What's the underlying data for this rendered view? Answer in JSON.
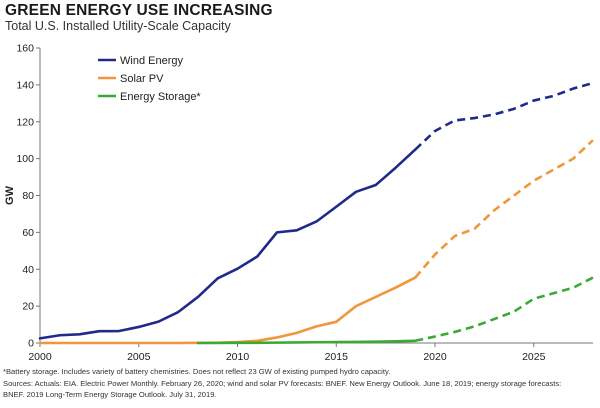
{
  "header": {
    "title": "GREEN ENERGY USE INCREASING",
    "subtitle": "Total U.S. Installed Utility-Scale Capacity"
  },
  "footnotes": {
    "note": "*Battery storage. Includes variety of battery chemistries. Does not reflect 23 GW of existing pumped hydro capacity.",
    "sources_line1": "Sources: Actuals: EIA. Electric Power Monthly. February 26, 2020; wind and solar PV forecasts: BNEF. New Energy Outlook. June 18, 2019; energy storage forecasts:",
    "sources_line2": "BNEF. 2019 Long-Term Energy Storage Outlook. July 31, 2019."
  },
  "chart_data": {
    "type": "line",
    "title": "GREEN ENERGY USE INCREASING",
    "subtitle": "Total U.S. Installed Utility-Scale Capacity",
    "xlabel": "",
    "ylabel": "GW",
    "xlim": [
      2000,
      2028
    ],
    "ylim": [
      0,
      160
    ],
    "xticks": [
      2000,
      2005,
      2010,
      2015,
      2020,
      2025
    ],
    "yticks": [
      0,
      20,
      40,
      60,
      80,
      100,
      120,
      140,
      160
    ],
    "grid": false,
    "legend_position": "top-left",
    "forecast_style": "dashed",
    "series": [
      {
        "name": "Wind Energy",
        "color": "#1f2a8a",
        "actual": {
          "x": [
            2000,
            2001,
            2002,
            2003,
            2004,
            2005,
            2006,
            2007,
            2008,
            2009,
            2010,
            2011,
            2012,
            2013,
            2014,
            2015,
            2016,
            2017,
            2018,
            2019
          ],
          "y": [
            2.5,
            4.2,
            4.7,
            6.4,
            6.5,
            8.7,
            11.6,
            16.8,
            25.0,
            35.1,
            40.3,
            46.9,
            60.0,
            61.1,
            65.9,
            73.9,
            82.0,
            85.7,
            95.0,
            104.9
          ]
        },
        "forecast": {
          "x": [
            2019,
            2020,
            2021,
            2022,
            2023,
            2024,
            2025,
            2026,
            2027,
            2028
          ],
          "y": [
            104.9,
            115.0,
            120.7,
            122.0,
            124.0,
            127.0,
            131.5,
            134.0,
            138.0,
            141.0
          ]
        }
      },
      {
        "name": "Solar PV",
        "color": "#f0963c",
        "actual": {
          "x": [
            2000,
            2001,
            2002,
            2003,
            2004,
            2005,
            2006,
            2007,
            2008,
            2009,
            2010,
            2011,
            2012,
            2013,
            2014,
            2015,
            2016,
            2017,
            2018,
            2019
          ],
          "y": [
            0,
            0,
            0,
            0,
            0,
            0,
            0,
            0,
            0.1,
            0.2,
            0.5,
            1.2,
            3.0,
            5.5,
            9.0,
            11.5,
            20.0,
            25.0,
            30.0,
            35.5
          ]
        },
        "forecast": {
          "x": [
            2019,
            2020,
            2021,
            2022,
            2023,
            2024,
            2025,
            2026,
            2027,
            2028
          ],
          "y": [
            35.5,
            48.0,
            58.0,
            62.0,
            72.0,
            80.0,
            88.0,
            94.0,
            100.0,
            110.0
          ]
        }
      },
      {
        "name": "Energy Storage*",
        "color": "#3aaa35",
        "actual": {
          "x": [
            2008,
            2009,
            2010,
            2011,
            2012,
            2013,
            2014,
            2015,
            2016,
            2017,
            2018,
            2019
          ],
          "y": [
            0,
            0,
            0.1,
            0.1,
            0.2,
            0.3,
            0.4,
            0.5,
            0.6,
            0.7,
            0.9,
            1.2
          ]
        },
        "forecast": {
          "x": [
            2019,
            2020,
            2021,
            2022,
            2023,
            2024,
            2025,
            2026,
            2027,
            2028
          ],
          "y": [
            1.2,
            3.5,
            6.0,
            9.0,
            13.0,
            17.0,
            24.0,
            27.0,
            30.0,
            35.5
          ]
        }
      }
    ]
  }
}
